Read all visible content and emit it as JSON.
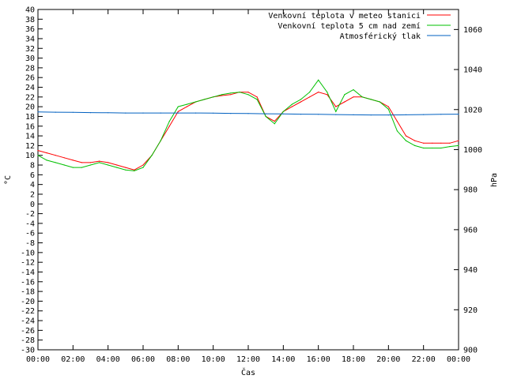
{
  "chart_data": {
    "type": "line",
    "xlabel": "Čas",
    "ylabel_left": "°C",
    "ylabel_right": "hPa",
    "x_ticks": [
      "00:00",
      "02:00",
      "04:00",
      "06:00",
      "08:00",
      "10:00",
      "12:00",
      "14:00",
      "16:00",
      "18:00",
      "20:00",
      "22:00",
      "00:00"
    ],
    "x_range_hours": [
      0,
      24
    ],
    "ylim_left": [
      -30,
      40
    ],
    "ylim_right": [
      900,
      1070
    ],
    "y_ticks_left": [
      40,
      38,
      36,
      34,
      32,
      30,
      28,
      26,
      24,
      22,
      20,
      18,
      16,
      14,
      12,
      10,
      8,
      6,
      4,
      2,
      0,
      -2,
      -4,
      -6,
      -8,
      -10,
      -12,
      -14,
      -16,
      -18,
      -20,
      -22,
      -24,
      -26,
      -28,
      -30
    ],
    "y_ticks_right": [
      1060,
      1040,
      1020,
      1000,
      980,
      960,
      940,
      920,
      900
    ],
    "grid": false,
    "legend_position": "top-right",
    "series": [
      {
        "name": "Venkovní teplota v meteo stanici",
        "axis": "left",
        "color": "#ff0000",
        "x": [
          0,
          0.5,
          1,
          1.5,
          2,
          2.5,
          3,
          3.5,
          4,
          4.5,
          5,
          5.5,
          6,
          6.5,
          7,
          7.5,
          8,
          8.5,
          9,
          9.5,
          10,
          10.5,
          11,
          11.5,
          12,
          12.5,
          13,
          13.5,
          14,
          14.5,
          15,
          15.5,
          16,
          16.5,
          17,
          17.5,
          18,
          18.5,
          19,
          19.5,
          20,
          20.5,
          21,
          21.5,
          22,
          22.5,
          23,
          23.5,
          24
        ],
        "values": [
          11,
          10.5,
          10,
          9.5,
          9,
          8.5,
          8.5,
          8.8,
          8.5,
          8,
          7.5,
          7,
          8,
          10,
          13,
          16,
          19,
          20,
          21,
          21.5,
          22,
          22.3,
          22.5,
          23,
          23,
          22,
          18,
          17,
          19,
          20,
          21,
          22,
          23,
          22.5,
          20,
          21,
          22,
          22,
          21.5,
          21,
          20,
          17,
          14,
          13,
          12.5,
          12.5,
          12.5,
          12.5,
          13
        ]
      },
      {
        "name": "Venkovní teplota 5 cm nad zemí",
        "axis": "left",
        "color": "#00c000",
        "x": [
          0,
          0.5,
          1,
          1.5,
          2,
          2.5,
          3,
          3.5,
          4,
          4.5,
          5,
          5.5,
          6,
          6.5,
          7,
          7.5,
          8,
          8.5,
          9,
          9.5,
          10,
          10.5,
          11,
          11.5,
          12,
          12.5,
          13,
          13.5,
          14,
          14.5,
          15,
          15.5,
          16,
          16.5,
          17,
          17.5,
          18,
          18.5,
          19,
          19.5,
          20,
          20.5,
          21,
          21.5,
          22,
          22.5,
          23,
          23.5,
          24
        ],
        "values": [
          10,
          9,
          8.5,
          8,
          7.5,
          7.5,
          8,
          8.5,
          8,
          7.5,
          7,
          6.8,
          7.5,
          10,
          13,
          17,
          20,
          20.5,
          21,
          21.5,
          22,
          22.5,
          22.8,
          23,
          22.5,
          21.5,
          18,
          16.5,
          19,
          20.5,
          21.5,
          23,
          25.5,
          23,
          19,
          22.5,
          23.5,
          22,
          21.5,
          21,
          19.5,
          15,
          13,
          12,
          11.5,
          11.5,
          11.5,
          11.8,
          12
        ]
      },
      {
        "name": "Atmosférický tlak",
        "axis": "right",
        "color": "#0060c0",
        "x": [
          0,
          1,
          2,
          3,
          4,
          5,
          6,
          7,
          8,
          9,
          10,
          11,
          12,
          13,
          14,
          15,
          16,
          17,
          18,
          19,
          20,
          21,
          22,
          23,
          24
        ],
        "values": [
          1018.8,
          1018.7,
          1018.6,
          1018.5,
          1018.4,
          1018.3,
          1018.3,
          1018.3,
          1018.3,
          1018.3,
          1018.2,
          1018.1,
          1018,
          1017.9,
          1017.8,
          1017.7,
          1017.6,
          1017.5,
          1017.4,
          1017.3,
          1017.3,
          1017.4,
          1017.5,
          1017.6,
          1017.7
        ]
      }
    ]
  }
}
